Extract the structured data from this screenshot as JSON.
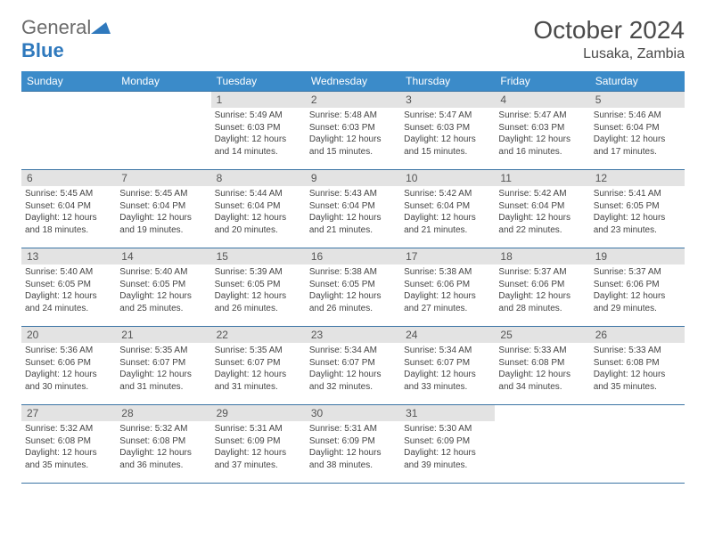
{
  "brand": {
    "general": "General",
    "blue": "Blue"
  },
  "title": {
    "month": "October 2024",
    "location": "Lusaka, Zambia"
  },
  "colors": {
    "header_bg": "#3b8bc9",
    "border": "#3b74a4",
    "daynum_bg": "#e3e3e3"
  },
  "weekdays": [
    "Sunday",
    "Monday",
    "Tuesday",
    "Wednesday",
    "Thursday",
    "Friday",
    "Saturday"
  ],
  "weeks": [
    [
      {
        "empty": true
      },
      {
        "empty": true
      },
      {
        "day": "1",
        "sunrise": "5:49 AM",
        "sunset": "6:03 PM",
        "daylight": "12 hours and 14 minutes."
      },
      {
        "day": "2",
        "sunrise": "5:48 AM",
        "sunset": "6:03 PM",
        "daylight": "12 hours and 15 minutes."
      },
      {
        "day": "3",
        "sunrise": "5:47 AM",
        "sunset": "6:03 PM",
        "daylight": "12 hours and 15 minutes."
      },
      {
        "day": "4",
        "sunrise": "5:47 AM",
        "sunset": "6:03 PM",
        "daylight": "12 hours and 16 minutes."
      },
      {
        "day": "5",
        "sunrise": "5:46 AM",
        "sunset": "6:04 PM",
        "daylight": "12 hours and 17 minutes."
      }
    ],
    [
      {
        "day": "6",
        "sunrise": "5:45 AM",
        "sunset": "6:04 PM",
        "daylight": "12 hours and 18 minutes."
      },
      {
        "day": "7",
        "sunrise": "5:45 AM",
        "sunset": "6:04 PM",
        "daylight": "12 hours and 19 minutes."
      },
      {
        "day": "8",
        "sunrise": "5:44 AM",
        "sunset": "6:04 PM",
        "daylight": "12 hours and 20 minutes."
      },
      {
        "day": "9",
        "sunrise": "5:43 AM",
        "sunset": "6:04 PM",
        "daylight": "12 hours and 21 minutes."
      },
      {
        "day": "10",
        "sunrise": "5:42 AM",
        "sunset": "6:04 PM",
        "daylight": "12 hours and 21 minutes."
      },
      {
        "day": "11",
        "sunrise": "5:42 AM",
        "sunset": "6:04 PM",
        "daylight": "12 hours and 22 minutes."
      },
      {
        "day": "12",
        "sunrise": "5:41 AM",
        "sunset": "6:05 PM",
        "daylight": "12 hours and 23 minutes."
      }
    ],
    [
      {
        "day": "13",
        "sunrise": "5:40 AM",
        "sunset": "6:05 PM",
        "daylight": "12 hours and 24 minutes."
      },
      {
        "day": "14",
        "sunrise": "5:40 AM",
        "sunset": "6:05 PM",
        "daylight": "12 hours and 25 minutes."
      },
      {
        "day": "15",
        "sunrise": "5:39 AM",
        "sunset": "6:05 PM",
        "daylight": "12 hours and 26 minutes."
      },
      {
        "day": "16",
        "sunrise": "5:38 AM",
        "sunset": "6:05 PM",
        "daylight": "12 hours and 26 minutes."
      },
      {
        "day": "17",
        "sunrise": "5:38 AM",
        "sunset": "6:06 PM",
        "daylight": "12 hours and 27 minutes."
      },
      {
        "day": "18",
        "sunrise": "5:37 AM",
        "sunset": "6:06 PM",
        "daylight": "12 hours and 28 minutes."
      },
      {
        "day": "19",
        "sunrise": "5:37 AM",
        "sunset": "6:06 PM",
        "daylight": "12 hours and 29 minutes."
      }
    ],
    [
      {
        "day": "20",
        "sunrise": "5:36 AM",
        "sunset": "6:06 PM",
        "daylight": "12 hours and 30 minutes."
      },
      {
        "day": "21",
        "sunrise": "5:35 AM",
        "sunset": "6:07 PM",
        "daylight": "12 hours and 31 minutes."
      },
      {
        "day": "22",
        "sunrise": "5:35 AM",
        "sunset": "6:07 PM",
        "daylight": "12 hours and 31 minutes."
      },
      {
        "day": "23",
        "sunrise": "5:34 AM",
        "sunset": "6:07 PM",
        "daylight": "12 hours and 32 minutes."
      },
      {
        "day": "24",
        "sunrise": "5:34 AM",
        "sunset": "6:07 PM",
        "daylight": "12 hours and 33 minutes."
      },
      {
        "day": "25",
        "sunrise": "5:33 AM",
        "sunset": "6:08 PM",
        "daylight": "12 hours and 34 minutes."
      },
      {
        "day": "26",
        "sunrise": "5:33 AM",
        "sunset": "6:08 PM",
        "daylight": "12 hours and 35 minutes."
      }
    ],
    [
      {
        "day": "27",
        "sunrise": "5:32 AM",
        "sunset": "6:08 PM",
        "daylight": "12 hours and 35 minutes."
      },
      {
        "day": "28",
        "sunrise": "5:32 AM",
        "sunset": "6:08 PM",
        "daylight": "12 hours and 36 minutes."
      },
      {
        "day": "29",
        "sunrise": "5:31 AM",
        "sunset": "6:09 PM",
        "daylight": "12 hours and 37 minutes."
      },
      {
        "day": "30",
        "sunrise": "5:31 AM",
        "sunset": "6:09 PM",
        "daylight": "12 hours and 38 minutes."
      },
      {
        "day": "31",
        "sunrise": "5:30 AM",
        "sunset": "6:09 PM",
        "daylight": "12 hours and 39 minutes."
      },
      {
        "empty": true
      },
      {
        "empty": true
      }
    ]
  ],
  "labels": {
    "sunrise": "Sunrise:",
    "sunset": "Sunset:",
    "daylight": "Daylight:"
  }
}
